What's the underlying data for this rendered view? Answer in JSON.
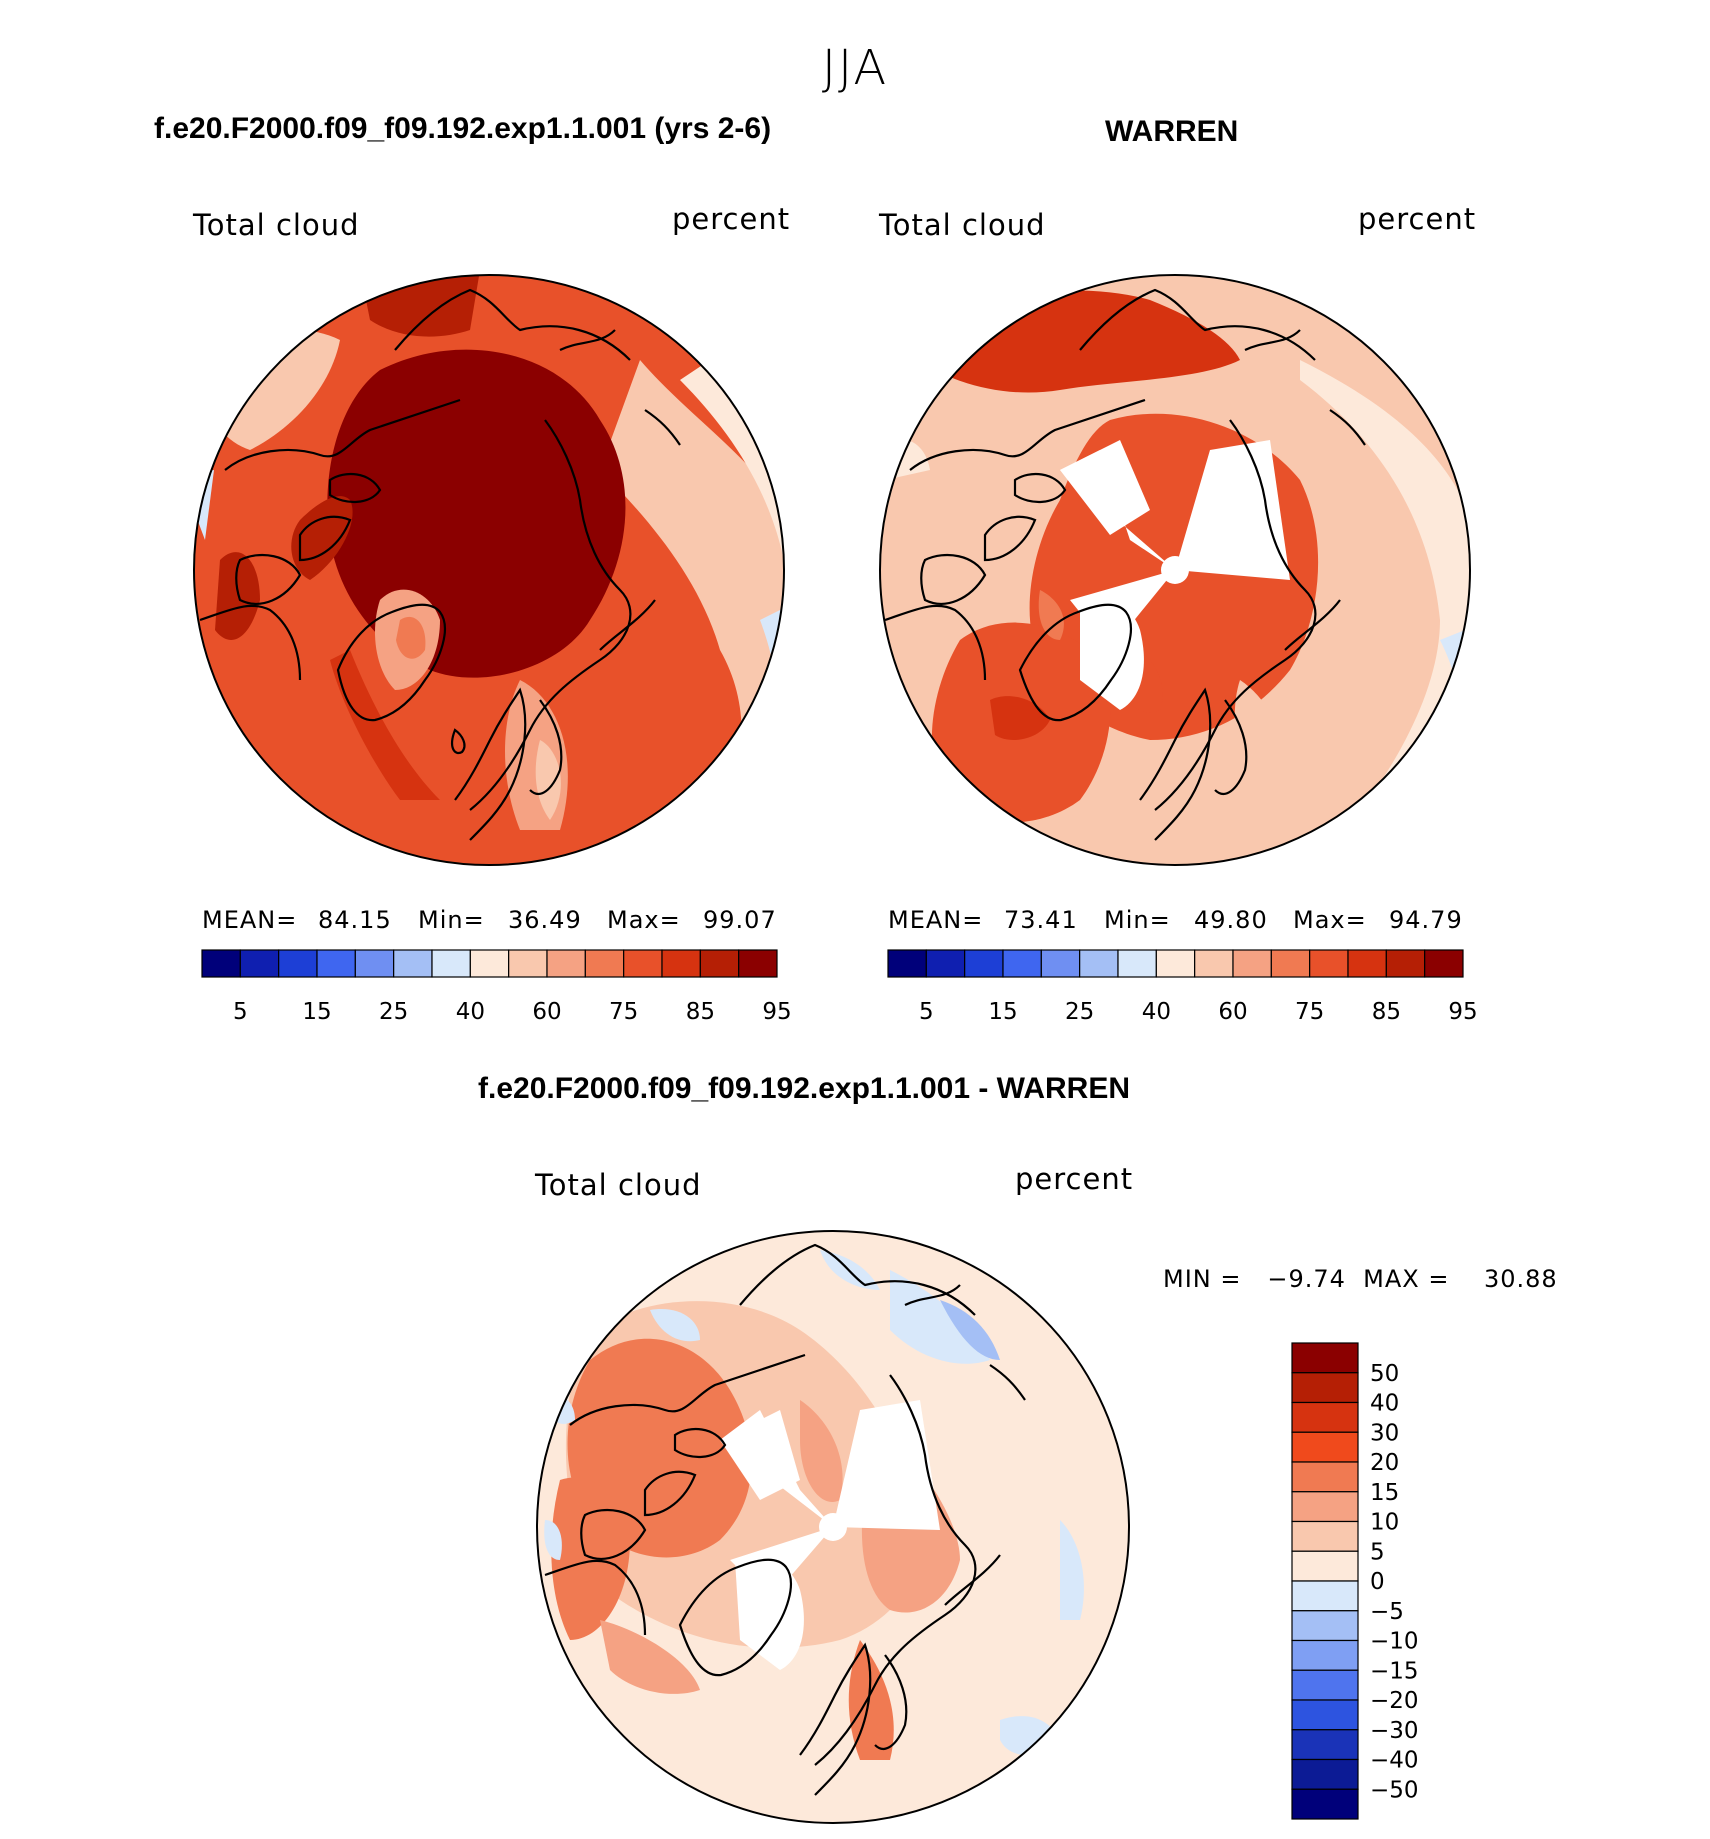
{
  "title": "JJA",
  "panels": [
    {
      "case": "f.e20.F2000.f09_f09.192.exp1.1.001 (yrs 2-6)",
      "field": "Total cloud",
      "units": "percent",
      "stats": {
        "mean_label": "MEAN=",
        "mean": "84.15",
        "min_label": "Min=",
        "min": "36.49",
        "max_label": "Max=",
        "max": "99.07"
      }
    },
    {
      "case": "WARREN",
      "field": "Total cloud",
      "units": "percent",
      "stats": {
        "mean_label": "MEAN=",
        "mean": "73.41",
        "min_label": "Min=",
        "min": "49.80",
        "max_label": "Max=",
        "max": "94.79"
      }
    },
    {
      "case": "f.e20.F2000.f09_f09.192.exp1.1.001 - WARREN",
      "field": "Total cloud",
      "units": "percent",
      "stats": {
        "text": "MIN =   −9.74  MAX =    30.88"
      }
    }
  ],
  "chart_data": [
    {
      "type": "heatmap",
      "projection": "north-polar-stereographic",
      "colorbar": {
        "orientation": "horizontal",
        "levels": [
          "5",
          "15",
          "25",
          "40",
          "60",
          "75",
          "85",
          "95"
        ],
        "colors": [
          "#00007a",
          "#0f1fb0",
          "#1d3fd6",
          "#3f66f0",
          "#6f8ff2",
          "#a4bff5",
          "#d8e8fa",
          "#fde9da",
          "#f9c8ae",
          "#f5a283",
          "#f07a52",
          "#e8512a",
          "#d63310",
          "#b51f05",
          "#8b0000"
        ]
      }
    },
    {
      "type": "heatmap",
      "projection": "north-polar-stereographic",
      "colorbar": {
        "orientation": "horizontal",
        "levels": [
          "5",
          "15",
          "25",
          "40",
          "60",
          "75",
          "85",
          "95"
        ],
        "colors": [
          "#00007a",
          "#0f1fb0",
          "#1d3fd6",
          "#3f66f0",
          "#6f8ff2",
          "#a4bff5",
          "#d8e8fa",
          "#fde9da",
          "#f9c8ae",
          "#f5a283",
          "#f07a52",
          "#e8512a",
          "#d63310",
          "#b51f05",
          "#8b0000"
        ]
      }
    },
    {
      "type": "heatmap",
      "projection": "north-polar-stereographic",
      "colorbar": {
        "orientation": "vertical",
        "levels": [
          "50",
          "40",
          "30",
          "20",
          "15",
          "10",
          "5",
          "0",
          "−5",
          "−10",
          "−15",
          "−20",
          "−30",
          "−40",
          "−50"
        ],
        "colors": [
          "#8b0000",
          "#b51f05",
          "#d63310",
          "#f04a1c",
          "#f07a52",
          "#f5a283",
          "#f9c8ae",
          "#fde9da",
          "#d8e8fa",
          "#a4bff5",
          "#7f9ff3",
          "#4f74ee",
          "#2d54e0",
          "#1a33b8",
          "#0c1b95",
          "#00007a"
        ]
      }
    }
  ],
  "palette": {
    "bg": "#ffffff",
    "coast": "#000000"
  }
}
